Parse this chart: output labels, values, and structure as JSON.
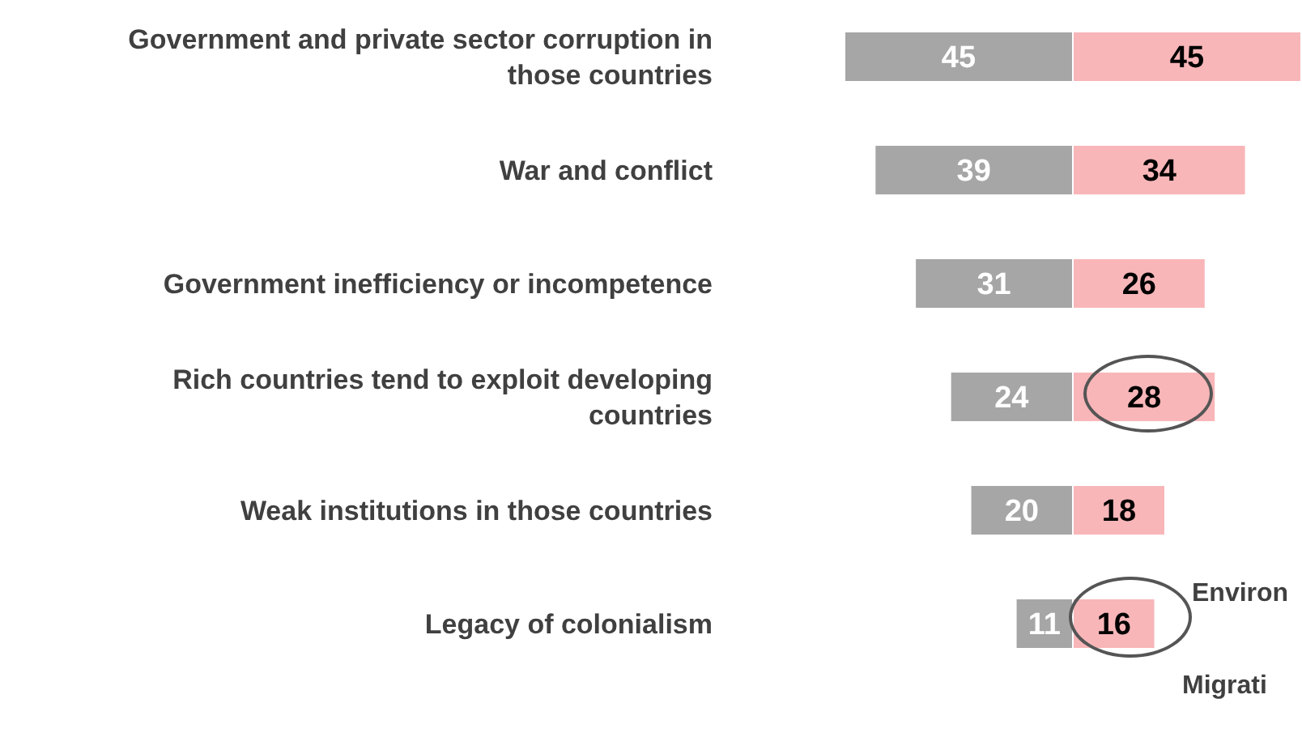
{
  "chart_data": [
    {
      "type": "bar",
      "orientation": "horizontal",
      "categories": [
        "Government and private sector corruption in those countries",
        "War and conflict",
        "Government inefficiency or incompetence",
        "Rich countries tend to exploit developing countries",
        "Weak institutions in those countries",
        "Legacy of colonialism"
      ],
      "series": [
        {
          "color": "#a6a6a6",
          "values": [
            45,
            39,
            31,
            24,
            20,
            11
          ]
        }
      ],
      "data_labels": true
    },
    {
      "type": "bar",
      "orientation": "horizontal",
      "categories": [
        null,
        null,
        null,
        null,
        null,
        null
      ],
      "series": [
        {
          "color": "#f8b6b9",
          "values": [
            45,
            34,
            26,
            28,
            18,
            16
          ]
        }
      ],
      "data_labels": true,
      "tick_labels": false,
      "annotations": [
        "Environ",
        "Migrati"
      ]
    }
  ]
}
